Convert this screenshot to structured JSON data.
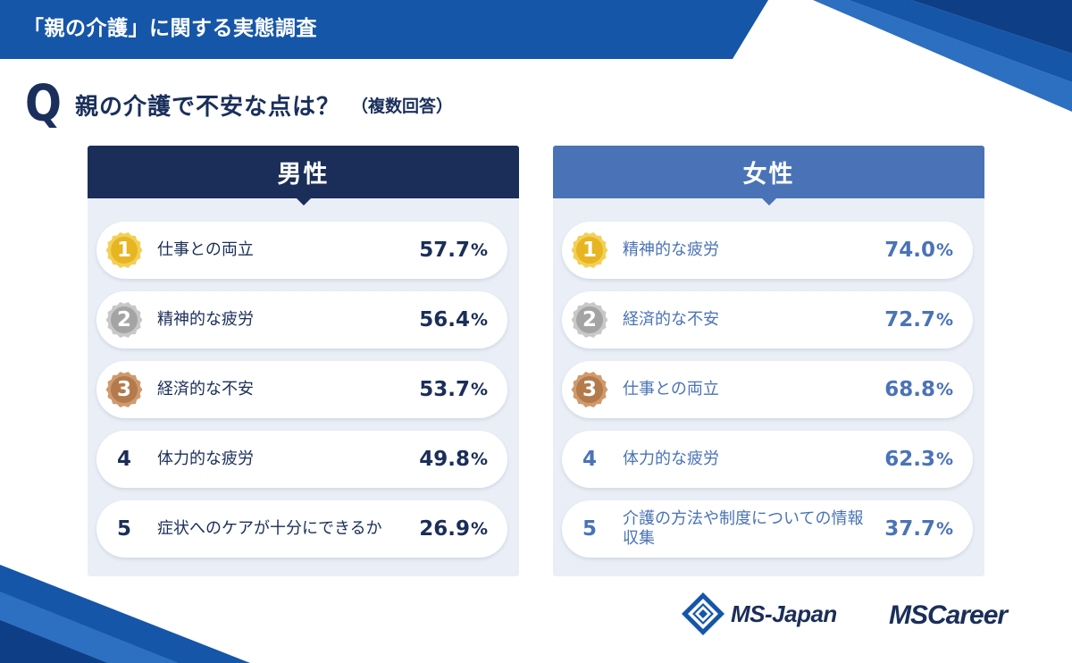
{
  "header": {
    "survey_title": "「親の介護」に関する実態調査"
  },
  "question": {
    "mark": "Q",
    "text": "親の介護で不安な点は？",
    "note": "（複数回答）"
  },
  "colors": {
    "navy": "#1b2e59",
    "blue": "#4a73b7",
    "panel_bg": "#eaeff7",
    "gold": "#e7b522",
    "silver": "#a4a4a4",
    "bronze": "#b37a4c"
  },
  "chart_data": [
    {
      "type": "table",
      "title": "男性",
      "rows": [
        {
          "rank": "1",
          "label": "仕事との両立",
          "value": "57.7",
          "unit": "%",
          "medal": "gold-medal-icon"
        },
        {
          "rank": "2",
          "label": "精神的な疲労",
          "value": "56.4",
          "unit": "%",
          "medal": "silver-medal-icon"
        },
        {
          "rank": "3",
          "label": "経済的な不安",
          "value": "53.7",
          "unit": "%",
          "medal": "bronze-medal-icon"
        },
        {
          "rank": "4",
          "label": "体力的な疲労",
          "value": "49.8",
          "unit": "%"
        },
        {
          "rank": "5",
          "label": "症状へのケアが十分にできるか",
          "value": "26.9",
          "unit": "%"
        }
      ]
    },
    {
      "type": "table",
      "title": "女性",
      "rows": [
        {
          "rank": "1",
          "label": "精神的な疲労",
          "value": "74.0",
          "unit": "%",
          "medal": "gold-medal-icon"
        },
        {
          "rank": "2",
          "label": "経済的な不安",
          "value": "72.7",
          "unit": "%",
          "medal": "silver-medal-icon"
        },
        {
          "rank": "3",
          "label": "仕事との両立",
          "value": "68.8",
          "unit": "%",
          "medal": "bronze-medal-icon"
        },
        {
          "rank": "4",
          "label": "体力的な疲労",
          "value": "62.3",
          "unit": "%"
        },
        {
          "rank": "5",
          "label": "介護の方法や制度についての情報収集",
          "value": "37.7",
          "unit": "%"
        }
      ]
    }
  ],
  "logos": {
    "msjapan": "MS-Japan",
    "mscareer": "MSCareer"
  }
}
